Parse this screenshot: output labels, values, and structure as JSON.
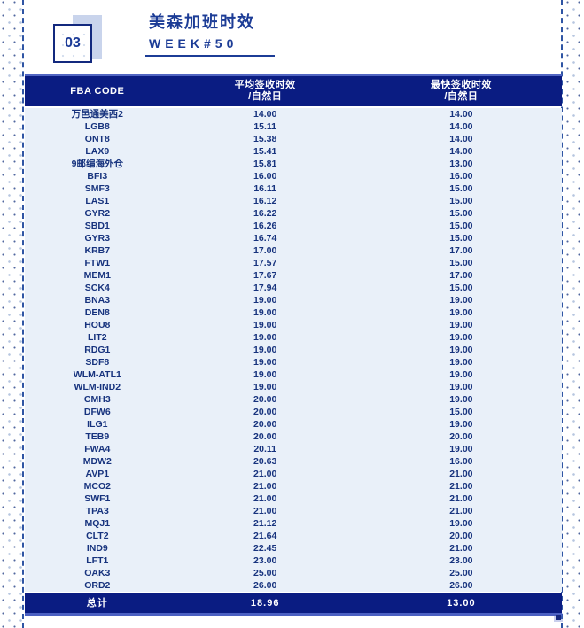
{
  "header": {
    "badge": "03",
    "title": "美森加班时效",
    "week": "WEEK#50"
  },
  "table": {
    "columns": [
      {
        "label": "FBA CODE",
        "sub": ""
      },
      {
        "label": "平均签收时效",
        "sub": "/自然日"
      },
      {
        "label": "最快签收时效",
        "sub": "/自然日"
      }
    ],
    "rows": [
      {
        "code": "万邑通美西2",
        "avg": "14.00",
        "fastest": "14.00"
      },
      {
        "code": "LGB8",
        "avg": "15.11",
        "fastest": "14.00"
      },
      {
        "code": "ONT8",
        "avg": "15.38",
        "fastest": "14.00"
      },
      {
        "code": "LAX9",
        "avg": "15.41",
        "fastest": "14.00"
      },
      {
        "code": "9邮编海外仓",
        "avg": "15.81",
        "fastest": "13.00"
      },
      {
        "code": "BFI3",
        "avg": "16.00",
        "fastest": "16.00"
      },
      {
        "code": "SMF3",
        "avg": "16.11",
        "fastest": "15.00"
      },
      {
        "code": "LAS1",
        "avg": "16.12",
        "fastest": "15.00"
      },
      {
        "code": "GYR2",
        "avg": "16.22",
        "fastest": "15.00"
      },
      {
        "code": "SBD1",
        "avg": "16.26",
        "fastest": "15.00"
      },
      {
        "code": "GYR3",
        "avg": "16.74",
        "fastest": "15.00"
      },
      {
        "code": "KRB7",
        "avg": "17.00",
        "fastest": "17.00"
      },
      {
        "code": "FTW1",
        "avg": "17.57",
        "fastest": "15.00"
      },
      {
        "code": "MEM1",
        "avg": "17.67",
        "fastest": "17.00"
      },
      {
        "code": "SCK4",
        "avg": "17.94",
        "fastest": "15.00"
      },
      {
        "code": "BNA3",
        "avg": "19.00",
        "fastest": "19.00"
      },
      {
        "code": "DEN8",
        "avg": "19.00",
        "fastest": "19.00"
      },
      {
        "code": "HOU8",
        "avg": "19.00",
        "fastest": "19.00"
      },
      {
        "code": "LIT2",
        "avg": "19.00",
        "fastest": "19.00"
      },
      {
        "code": "RDG1",
        "avg": "19.00",
        "fastest": "19.00"
      },
      {
        "code": "SDF8",
        "avg": "19.00",
        "fastest": "19.00"
      },
      {
        "code": "WLM-ATL1",
        "avg": "19.00",
        "fastest": "19.00"
      },
      {
        "code": "WLM-IND2",
        "avg": "19.00",
        "fastest": "19.00"
      },
      {
        "code": "CMH3",
        "avg": "20.00",
        "fastest": "19.00"
      },
      {
        "code": "DFW6",
        "avg": "20.00",
        "fastest": "15.00"
      },
      {
        "code": "ILG1",
        "avg": "20.00",
        "fastest": "19.00"
      },
      {
        "code": "TEB9",
        "avg": "20.00",
        "fastest": "20.00"
      },
      {
        "code": "FWA4",
        "avg": "20.11",
        "fastest": "19.00"
      },
      {
        "code": "MDW2",
        "avg": "20.63",
        "fastest": "16.00"
      },
      {
        "code": "AVP1",
        "avg": "21.00",
        "fastest": "21.00"
      },
      {
        "code": "MCO2",
        "avg": "21.00",
        "fastest": "21.00"
      },
      {
        "code": "SWF1",
        "avg": "21.00",
        "fastest": "21.00"
      },
      {
        "code": "TPA3",
        "avg": "21.00",
        "fastest": "21.00"
      },
      {
        "code": "MQJ1",
        "avg": "21.12",
        "fastest": "19.00"
      },
      {
        "code": "CLT2",
        "avg": "21.64",
        "fastest": "20.00"
      },
      {
        "code": "IND9",
        "avg": "22.45",
        "fastest": "21.00"
      },
      {
        "code": "LFT1",
        "avg": "23.00",
        "fastest": "23.00"
      },
      {
        "code": "OAK3",
        "avg": "25.00",
        "fastest": "25.00"
      },
      {
        "code": "ORD2",
        "avg": "26.00",
        "fastest": "26.00"
      }
    ],
    "total": {
      "label": "总计",
      "avg": "18.96",
      "fastest": "13.00"
    }
  },
  "colors": {
    "navy_bar": "#0a1c82",
    "row_background": "#e9f0f9",
    "row_text": "#17337e",
    "title_navy": "#1c3c96",
    "accent_lavender": "#c9d4ec",
    "light_blue_border": "#5266c2"
  }
}
